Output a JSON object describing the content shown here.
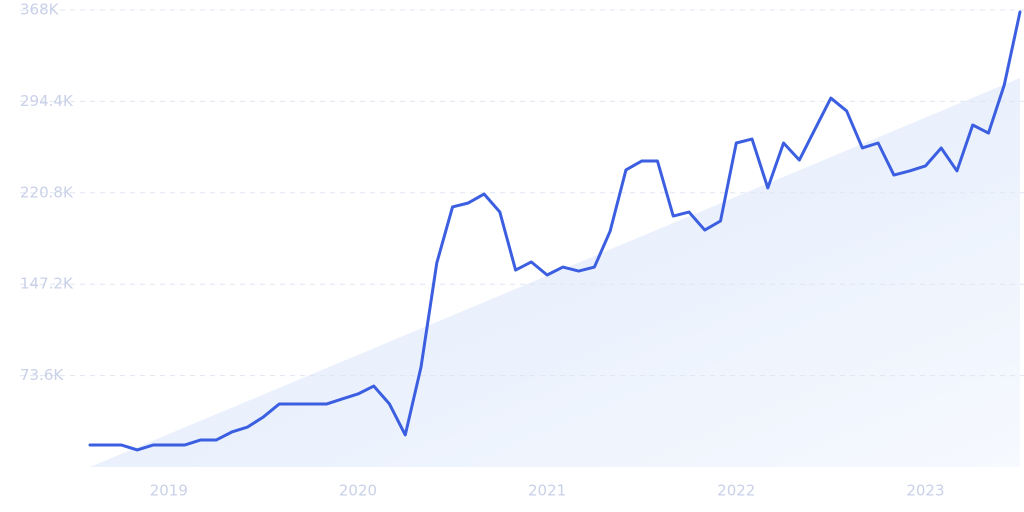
{
  "chart_data": {
    "type": "line",
    "categories": [
      null,
      null,
      null,
      null,
      null,
      "2019",
      null,
      null,
      null,
      null,
      null,
      null,
      null,
      null,
      null,
      null,
      null,
      "2020",
      null,
      null,
      null,
      null,
      null,
      null,
      null,
      null,
      null,
      null,
      null,
      "2021",
      null,
      null,
      null,
      null,
      null,
      null,
      null,
      null,
      null,
      null,
      null,
      "2022",
      null,
      null,
      null,
      null,
      null,
      null,
      null,
      null,
      null,
      null,
      null,
      "2023",
      null,
      null,
      null,
      null,
      null,
      null
    ],
    "series": [
      {
        "color": "#3b5fe0",
        "values": [
          17700,
          17700,
          17700,
          13700,
          17700,
          17700,
          17700,
          21700,
          21700,
          28200,
          32200,
          40300,
          50700,
          50700,
          50700,
          50700,
          54800,
          58800,
          65200,
          50700,
          25800,
          80500,
          164300,
          209400,
          212600,
          219800,
          205300,
          158600,
          165100,
          154600,
          161000,
          157800,
          161000,
          190000,
          239200,
          246400,
          246400,
          202100,
          205300,
          190800,
          198100,
          260900,
          264100,
          224700,
          260900,
          247200,
          272200,
          297100,
          286700,
          256900,
          260900,
          235100,
          238400,
          242400,
          256900,
          238400,
          275400,
          268900,
          307600,
          366400
        ]
      }
    ],
    "ylim": [
      0,
      368000
    ],
    "yticks": [
      {
        "value": 73600,
        "label": "73.6K"
      },
      {
        "value": 147200,
        "label": "147.2K"
      },
      {
        "value": 220800,
        "label": "220.8K"
      },
      {
        "value": 294400,
        "label": "294.4K"
      },
      {
        "value": 368000,
        "label": "368K"
      }
    ],
    "grid": true
  }
}
